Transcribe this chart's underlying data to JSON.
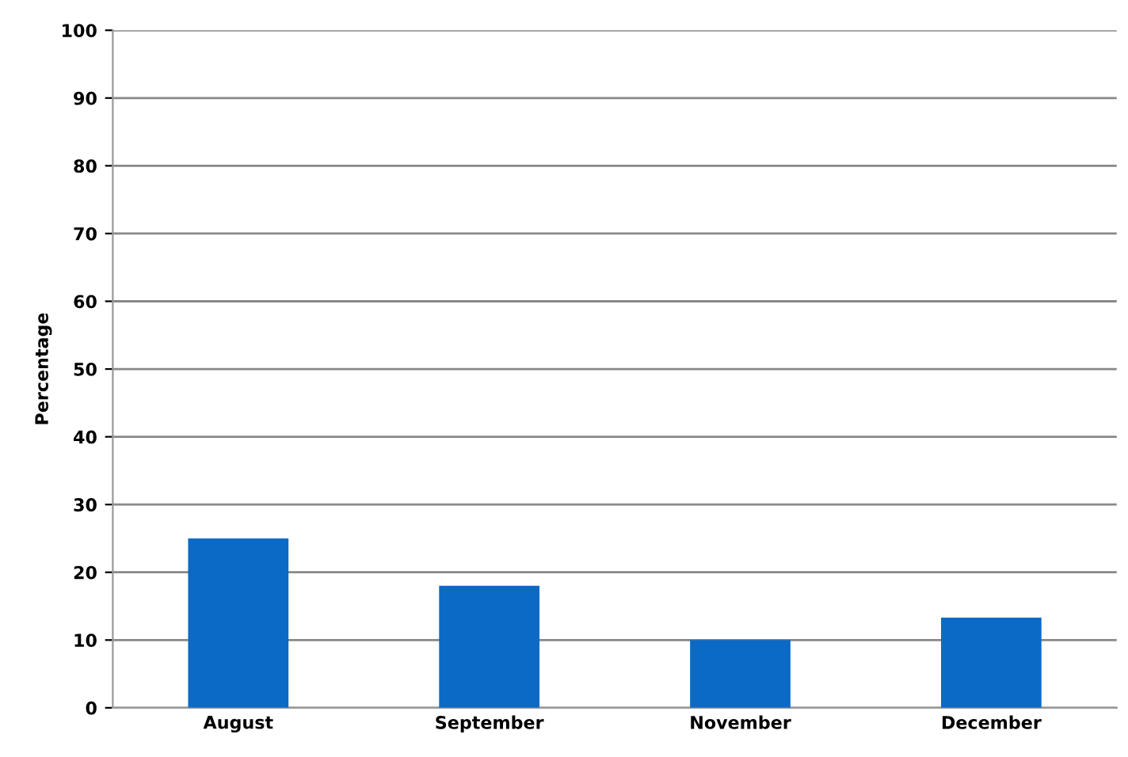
{
  "chart_data": {
    "type": "bar",
    "ylabel": "Percentage",
    "categories": [
      "August",
      "September",
      "November",
      "December"
    ],
    "values": [
      25,
      18,
      10,
      13.3
    ],
    "color": "#0a6ac6",
    "ylim": [
      0,
      100
    ],
    "yticks": [
      0,
      10,
      20,
      30,
      40,
      50,
      60,
      70,
      80,
      90,
      100
    ],
    "grid": "y"
  }
}
